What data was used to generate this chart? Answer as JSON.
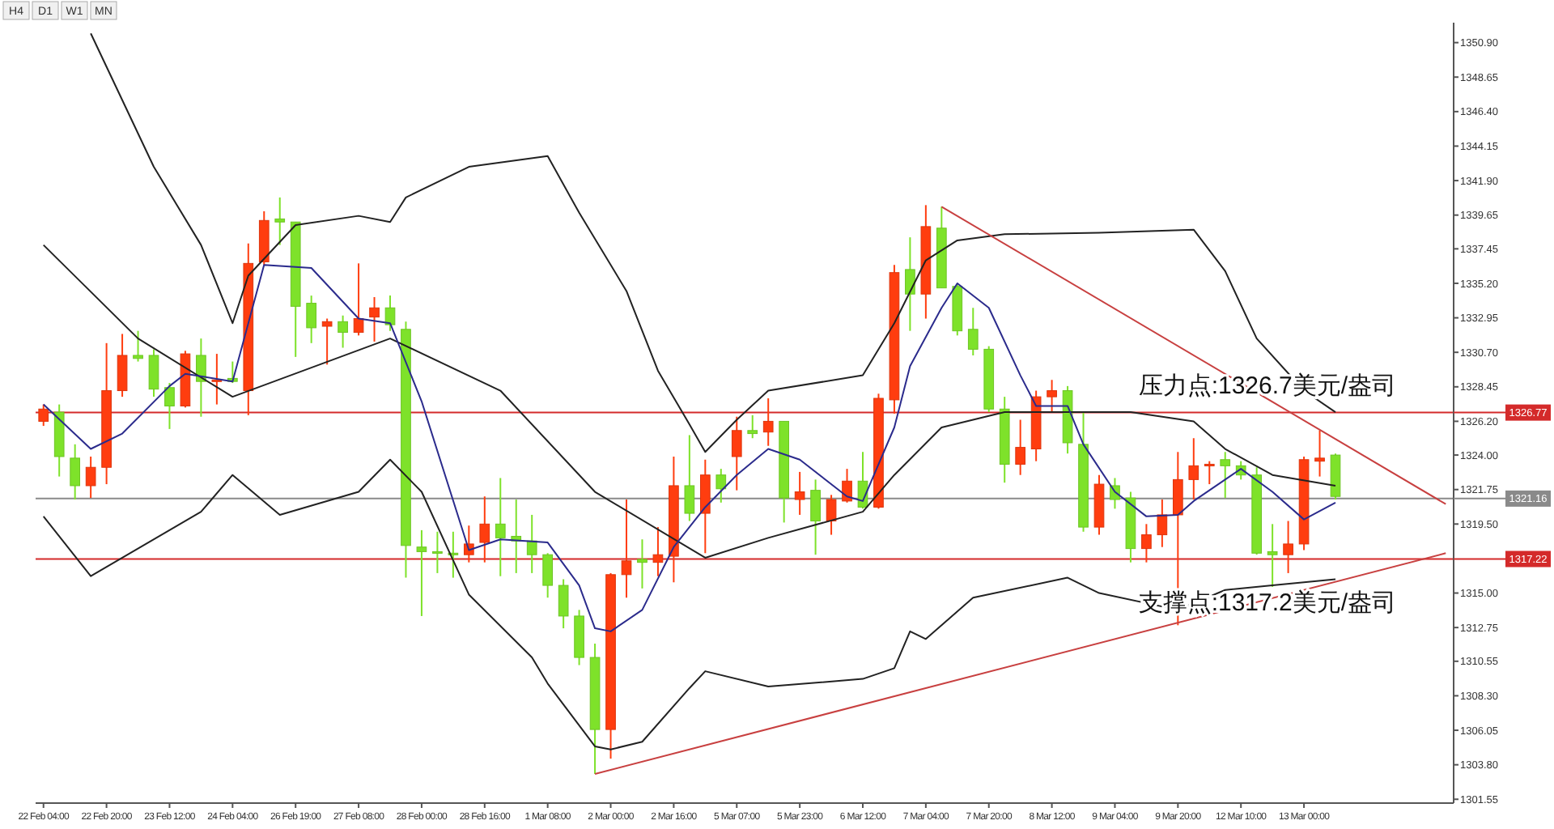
{
  "chart_data": {
    "type": "candlestick",
    "categories": [
      "22 Feb 04:00",
      null,
      null,
      null,
      "22 Feb 20:00",
      null,
      null,
      null,
      "23 Feb 12:00",
      null,
      null,
      null,
      "24 Feb 04:00",
      null,
      null,
      null,
      "26 Feb 19:00",
      null,
      null,
      null,
      "27 Feb 08:00",
      null,
      null,
      null,
      "28 Feb 00:00",
      null,
      null,
      null,
      "28 Feb 16:00",
      null,
      null,
      null,
      "1 Mar 08:00",
      null,
      null,
      null,
      "2 Mar 00:00",
      null,
      null,
      null,
      "2 Mar 16:00",
      null,
      null,
      null,
      "5 Mar 07:00",
      null,
      null,
      null,
      "5 Mar 23:00",
      null,
      null,
      null,
      "6 Mar 12:00",
      null,
      null,
      null,
      "7 Mar 04:00",
      null,
      null,
      null,
      "7 Mar 20:00",
      null,
      null,
      null,
      "8 Mar 12:00",
      null,
      null,
      null,
      "9 Mar 04:00",
      null,
      null,
      null,
      "9 Mar 20:00",
      null,
      null,
      null,
      "12 Mar 10:00",
      null,
      null,
      null,
      "13 Mar 00:00",
      null,
      null,
      null,
      null,
      null,
      null,
      null,
      null,
      null
    ],
    "ohlc": [
      [
        1326.2,
        1327.3,
        1325.9,
        1327.0
      ],
      [
        1326.8,
        1327.3,
        1322.6,
        1323.9
      ],
      [
        1323.8,
        1324.7,
        1321.1,
        1322.0
      ],
      [
        1322.0,
        1323.9,
        1321.2,
        1323.2
      ],
      [
        1323.2,
        1331.3,
        1322.1,
        1328.2
      ],
      [
        1328.2,
        1331.9,
        1327.8,
        1330.5
      ],
      [
        1330.5,
        1332.1,
        1330.1,
        1330.3
      ],
      [
        1330.5,
        1330.9,
        1327.8,
        1328.3
      ],
      [
        1328.4,
        1328.7,
        1325.7,
        1327.2
      ],
      [
        1327.2,
        1330.8,
        1327.1,
        1330.6
      ],
      [
        1330.5,
        1331.6,
        1326.5,
        1328.8
      ],
      [
        1328.8,
        1330.6,
        1327.3,
        1328.9
      ],
      [
        1329.0,
        1330.1,
        1328.7,
        1328.8
      ],
      [
        1328.2,
        1337.8,
        1326.6,
        1336.5
      ],
      [
        1336.6,
        1339.9,
        1336.4,
        1339.3
      ],
      [
        1339.4,
        1340.8,
        1337.7,
        1339.2
      ],
      [
        1339.2,
        1339.2,
        1330.4,
        1333.7
      ],
      [
        1333.9,
        1334.4,
        1331.3,
        1332.3
      ],
      [
        1332.4,
        1332.9,
        1329.9,
        1332.7
      ],
      [
        1332.7,
        1333.1,
        1331.0,
        1332.0
      ],
      [
        1332.0,
        1336.5,
        1331.8,
        1332.9
      ],
      [
        1333.0,
        1334.3,
        1331.4,
        1333.6
      ],
      [
        1333.6,
        1334.4,
        1332.1,
        1332.5
      ],
      [
        1332.2,
        1332.7,
        1316.0,
        1318.1
      ],
      [
        1318.0,
        1319.1,
        1313.5,
        1317.7
      ],
      [
        1317.7,
        1319.0,
        1316.3,
        1317.6
      ],
      [
        1317.6,
        1319.0,
        1316.0,
        1317.5
      ],
      [
        1317.5,
        1319.4,
        1317.0,
        1318.2
      ],
      [
        1318.3,
        1321.3,
        1317.0,
        1319.5
      ],
      [
        1319.5,
        1322.5,
        1316.1,
        1318.6
      ],
      [
        1318.7,
        1321.1,
        1316.3,
        1318.4
      ],
      [
        1318.4,
        1320.1,
        1316.3,
        1317.5
      ],
      [
        1317.5,
        1317.6,
        1314.7,
        1315.5
      ],
      [
        1315.5,
        1315.9,
        1312.7,
        1313.5
      ],
      [
        1313.5,
        1313.9,
        1310.3,
        1310.8
      ],
      [
        1310.8,
        1311.7,
        1303.2,
        1306.1
      ],
      [
        1306.1,
        1316.3,
        1304.2,
        1316.2
      ],
      [
        1316.2,
        1321.1,
        1314.7,
        1317.1
      ],
      [
        1317.2,
        1318.5,
        1315.3,
        1317.0
      ],
      [
        1317.0,
        1319.3,
        1316.1,
        1317.5
      ],
      [
        1317.4,
        1323.9,
        1315.7,
        1322.0
      ],
      [
        1322.0,
        1325.3,
        1319.7,
        1320.2
      ],
      [
        1320.2,
        1323.7,
        1317.6,
        1322.7
      ],
      [
        1322.7,
        1323.1,
        1320.9,
        1321.8
      ],
      [
        1323.9,
        1326.5,
        1321.7,
        1325.6
      ],
      [
        1325.6,
        1326.6,
        1325.1,
        1325.4
      ],
      [
        1325.5,
        1327.7,
        1324.6,
        1326.2
      ],
      [
        1326.2,
        1326.2,
        1319.6,
        1321.2
      ],
      [
        1321.1,
        1322.9,
        1320.1,
        1321.6
      ],
      [
        1321.7,
        1322.4,
        1317.5,
        1319.7
      ],
      [
        1319.7,
        1321.4,
        1318.8,
        1321.1
      ],
      [
        1321.0,
        1323.1,
        1320.9,
        1322.3
      ],
      [
        1322.3,
        1324.2,
        1320.5,
        1320.6
      ],
      [
        1320.6,
        1328.0,
        1320.5,
        1327.7
      ],
      [
        1327.6,
        1336.4,
        1326.7,
        1335.9
      ],
      [
        1336.1,
        1338.2,
        1332.1,
        1334.5
      ],
      [
        1334.5,
        1340.3,
        1332.9,
        1338.9
      ],
      [
        1338.8,
        1340.2,
        1334.9,
        1334.9
      ],
      [
        1335.0,
        1335.2,
        1331.8,
        1332.1
      ],
      [
        1332.2,
        1333.6,
        1330.5,
        1330.9
      ],
      [
        1330.9,
        1331.1,
        1326.8,
        1327.0
      ],
      [
        1327.0,
        1327.8,
        1322.2,
        1323.4
      ],
      [
        1323.4,
        1326.3,
        1322.7,
        1324.5
      ],
      [
        1324.4,
        1328.2,
        1323.6,
        1327.8
      ],
      [
        1327.8,
        1328.9,
        1326.8,
        1328.2
      ],
      [
        1328.2,
        1328.5,
        1324.1,
        1324.8
      ],
      [
        1324.7,
        1326.8,
        1319.0,
        1319.3
      ],
      [
        1319.3,
        1322.7,
        1318.8,
        1322.1
      ],
      [
        1322.0,
        1322.5,
        1320.5,
        1321.1
      ],
      [
        1321.2,
        1321.6,
        1317.0,
        1317.9
      ],
      [
        1317.9,
        1319.5,
        1317.0,
        1318.8
      ],
      [
        1318.8,
        1321.1,
        1318.0,
        1320.1
      ],
      [
        1320.1,
        1324.2,
        1312.9,
        1322.4
      ],
      [
        1322.4,
        1325.1,
        1321.1,
        1323.3
      ],
      [
        1323.3,
        1323.6,
        1322.1,
        1323.4
      ],
      [
        1323.7,
        1324.2,
        1321.2,
        1323.3
      ],
      [
        1323.3,
        1323.6,
        1322.4,
        1322.7
      ],
      [
        1322.7,
        1323.2,
        1317.5,
        1317.6
      ],
      [
        1317.7,
        1319.5,
        1315.4,
        1317.5
      ],
      [
        1317.5,
        1319.7,
        1316.3,
        1318.2
      ],
      [
        1318.2,
        1323.9,
        1317.8,
        1323.7
      ],
      [
        1323.6,
        1325.6,
        1322.6,
        1323.8
      ],
      [
        1324.0,
        1324.1,
        1321.1,
        1321.3
      ],
      null,
      null,
      null,
      null,
      null,
      null,
      null
    ],
    "colors": [
      "#ff3d0f",
      "#7ee22a",
      "#7ee22a",
      "#ff3d0f",
      "#ff3d0f",
      "#ff3d0f",
      "#7ee22a",
      "#7ee22a",
      "#7ee22a",
      "#ff3d0f",
      "#7ee22a",
      "#ff3d0f",
      "#7ee22a",
      "#ff3d0f",
      "#ff3d0f",
      "#7ee22a",
      "#7ee22a",
      "#7ee22a",
      "#ff3d0f",
      "#7ee22a",
      "#ff3d0f",
      "#ff3d0f",
      "#7ee22a",
      "#7ee22a",
      "#7ee22a",
      "#7ee22a",
      "#7ee22a",
      "#ff3d0f",
      "#ff3d0f",
      "#7ee22a",
      "#7ee22a",
      "#7ee22a",
      "#7ee22a",
      "#7ee22a",
      "#7ee22a",
      "#7ee22a",
      "#ff3d0f",
      "#ff3d0f",
      "#7ee22a",
      "#ff3d0f",
      "#ff3d0f",
      "#7ee22a",
      "#ff3d0f",
      "#7ee22a",
      "#ff3d0f",
      "#7ee22a",
      "#ff3d0f",
      "#7ee22a",
      "#ff3d0f",
      "#7ee22a",
      "#ff3d0f",
      "#ff3d0f",
      "#7ee22a",
      "#ff3d0f",
      "#ff3d0f",
      "#7ee22a",
      "#ff3d0f",
      "#7ee22a",
      "#7ee22a",
      "#7ee22a",
      "#7ee22a",
      "#7ee22a",
      "#ff3d0f",
      "#ff3d0f",
      "#ff3d0f",
      "#7ee22a",
      "#7ee22a",
      "#ff3d0f",
      "#7ee22a",
      "#7ee22a",
      "#ff3d0f",
      "#ff3d0f",
      "#ff3d0f",
      "#ff3d0f",
      "#ff3d0f",
      "#7ee22a",
      "#7ee22a",
      "#7ee22a",
      "#7ee22a",
      "#ff3d0f",
      "#ff3d0f",
      "#ff3d0f",
      "#7ee22a",
      null,
      null,
      null,
      null,
      null,
      null,
      null
    ],
    "series": [
      {
        "type": "line",
        "color": "#222222",
        "values": [
          null,
          null,
          null,
          1351.5,
          null,
          null,
          null,
          1342.8,
          null,
          null,
          1337.7,
          null,
          1332.6,
          1335.7,
          null,
          null,
          1339.0,
          null,
          null,
          null,
          1339.6,
          null,
          1339.2,
          1340.8,
          null,
          null,
          null,
          1342.8,
          null,
          null,
          null,
          null,
          1343.5,
          null,
          1339.8,
          null,
          null,
          1334.7,
          null,
          1329.5,
          null,
          1326.0,
          1324.2,
          null,
          1326.3,
          null,
          1328.2,
          null,
          null,
          null,
          null,
          null,
          1329.2,
          null,
          1332.6,
          null,
          1336.7,
          null,
          1338.0,
          null,
          null,
          1338.4,
          null,
          null,
          null,
          null,
          null,
          1338.5,
          null,
          null,
          null,
          null,
          null,
          1338.7,
          null,
          1336.0,
          null,
          1331.6,
          null,
          null,
          1328.2,
          null,
          1326.8,
          null,
          null,
          null,
          null,
          null,
          null,
          null
        ]
      },
      {
        "type": "line",
        "color": "#222222",
        "values": [
          1337.7,
          null,
          null,
          null,
          null,
          null,
          1331.6,
          null,
          null,
          null,
          null,
          null,
          1327.8,
          null,
          null,
          null,
          null,
          null,
          null,
          null,
          null,
          null,
          1331.6,
          null,
          null,
          null,
          null,
          null,
          null,
          1328.2,
          null,
          null,
          null,
          null,
          null,
          1321.6,
          null,
          null,
          null,
          null,
          null,
          null,
          1317.3,
          null,
          null,
          null,
          1318.6,
          null,
          null,
          null,
          null,
          null,
          1320.3,
          null,
          1322.7,
          null,
          null,
          1325.8,
          null,
          null,
          null,
          1326.8,
          null,
          null,
          null,
          null,
          null,
          null,
          null,
          1326.8,
          null,
          null,
          null,
          1326.2,
          null,
          1324.4,
          null,
          null,
          1322.7,
          null,
          null,
          null,
          1322.0,
          null,
          null,
          null,
          null,
          null,
          null,
          null
        ]
      },
      {
        "type": "line",
        "color": "#222222",
        "values": [
          1320.0,
          null,
          null,
          1316.1,
          null,
          null,
          null,
          null,
          null,
          null,
          1320.3,
          null,
          1322.7,
          null,
          null,
          1320.1,
          null,
          null,
          null,
          null,
          1321.6,
          null,
          1323.7,
          null,
          1321.6,
          null,
          null,
          1314.9,
          null,
          null,
          null,
          1310.8,
          1309.1,
          null,
          null,
          1305.0,
          1304.8,
          null,
          1305.3,
          null,
          null,
          1308.8,
          1309.9,
          null,
          null,
          null,
          1308.9,
          null,
          null,
          null,
          null,
          null,
          1309.4,
          null,
          1310.1,
          1312.5,
          1312.0,
          null,
          null,
          1314.7,
          null,
          null,
          null,
          null,
          null,
          1316.0,
          null,
          1315.0,
          null,
          null,
          null,
          null,
          1313.9,
          null,
          null,
          1315.2,
          null,
          null,
          1315.5,
          null,
          null,
          null,
          1315.9,
          null,
          null,
          null,
          null,
          null,
          null,
          null
        ]
      },
      {
        "type": "line",
        "color": "#2b2b8c",
        "values": [
          1327.3,
          null,
          null,
          1324.4,
          null,
          1325.4,
          null,
          null,
          1328.5,
          1329.3,
          null,
          null,
          1328.8,
          null,
          1336.4,
          null,
          null,
          1336.2,
          null,
          null,
          1332.9,
          null,
          1332.6,
          null,
          1327.5,
          null,
          null,
          1317.8,
          null,
          1318.5,
          null,
          null,
          1318.3,
          null,
          1315.5,
          1312.7,
          1312.5,
          null,
          1313.9,
          null,
          1318.0,
          null,
          1320.6,
          null,
          1322.7,
          null,
          1324.4,
          null,
          1323.7,
          null,
          null,
          1321.3,
          1321.0,
          null,
          1325.8,
          1329.8,
          null,
          1333.6,
          1335.2,
          null,
          1333.6,
          null,
          1329.2,
          1327.2,
          null,
          1327.2,
          1324.7,
          null,
          1321.6,
          null,
          1320.0,
          null,
          1320.1,
          1321.0,
          null,
          null,
          1323.1,
          null,
          1321.6,
          null,
          1319.8,
          null,
          1320.9,
          null,
          null,
          null,
          null,
          null,
          null,
          null
        ]
      },
      {
        "type": "line",
        "color": "#c84040",
        "values": [
          null,
          null,
          null,
          null,
          null,
          null,
          null,
          null,
          null,
          null,
          null,
          null,
          null,
          null,
          null,
          null,
          null,
          null,
          null,
          null,
          null,
          null,
          null,
          null,
          null,
          null,
          null,
          null,
          null,
          null,
          null,
          null,
          null,
          null,
          null,
          null,
          null,
          null,
          null,
          null,
          null,
          null,
          null,
          null,
          null,
          null,
          null,
          null,
          null,
          null,
          null,
          null,
          null,
          null,
          null,
          null,
          null,
          1340.2,
          null,
          null,
          null,
          null,
          null,
          null,
          null,
          null,
          null,
          null,
          null,
          null,
          null,
          null,
          null,
          null,
          null,
          null,
          null,
          null,
          null,
          null,
          null,
          null,
          null,
          null,
          null,
          null,
          null,
          null,
          null,
          1320.8
        ]
      },
      {
        "type": "line",
        "color": "#c84040",
        "values": [
          null,
          null,
          null,
          null,
          null,
          null,
          null,
          null,
          null,
          null,
          null,
          null,
          null,
          null,
          null,
          null,
          null,
          null,
          null,
          null,
          null,
          null,
          null,
          null,
          null,
          null,
          null,
          null,
          null,
          null,
          null,
          null,
          null,
          null,
          null,
          1303.2,
          null,
          null,
          null,
          null,
          null,
          null,
          null,
          null,
          null,
          null,
          null,
          null,
          null,
          null,
          null,
          null,
          null,
          null,
          null,
          null,
          null,
          null,
          null,
          null,
          null,
          null,
          null,
          null,
          null,
          null,
          null,
          null,
          null,
          null,
          null,
          null,
          null,
          null,
          null,
          null,
          null,
          null,
          null,
          null,
          null,
          null,
          null,
          null,
          null,
          null,
          null,
          null,
          null,
          1317.6
        ]
      }
    ],
    "ylim": [
      1301.3,
      1352.2
    ],
    "yticks": [
      {
        "value": 1350.9,
        "label": "1350.90"
      },
      {
        "value": 1348.65,
        "label": "1348.65"
      },
      {
        "value": 1346.4,
        "label": "1346.40"
      },
      {
        "value": 1344.15,
        "label": "1344.15"
      },
      {
        "value": 1341.9,
        "label": "1341.90"
      },
      {
        "value": 1339.65,
        "label": "1339.65"
      },
      {
        "value": 1337.45,
        "label": "1337.45"
      },
      {
        "value": 1335.2,
        "label": "1335.20"
      },
      {
        "value": 1332.95,
        "label": "1332.95"
      },
      {
        "value": 1330.7,
        "label": "1330.70"
      },
      {
        "value": 1328.45,
        "label": "1328.45"
      },
      {
        "value": 1326.2,
        "label": "1326.20"
      },
      {
        "value": 1324.0,
        "label": "1324.00"
      },
      {
        "value": 1321.75,
        "label": "1321.75"
      },
      {
        "value": 1319.5,
        "label": "1319.50"
      },
      {
        "value": 1315.0,
        "label": "1315.00"
      },
      {
        "value": 1312.75,
        "label": "1312.75"
      },
      {
        "value": 1310.55,
        "label": "1310.55"
      },
      {
        "value": 1308.3,
        "label": "1308.30"
      },
      {
        "value": 1306.05,
        "label": "1306.05"
      },
      {
        "value": 1303.8,
        "label": "1303.80"
      },
      {
        "value": 1301.55,
        "label": "1301.55"
      }
    ],
    "ref_lines": [
      {
        "axis": "y",
        "value": 1326.77,
        "label": "1326.77",
        "color": "#d42a2a"
      },
      {
        "axis": "y",
        "value": 1317.22,
        "label": "1317.22",
        "color": "#d42a2a"
      },
      {
        "axis": "y",
        "value": 1321.16,
        "label": "1321.16",
        "color": "#8a8a8a"
      }
    ],
    "annotations": [
      "压力点:1326.7美元/盎司",
      "支撑点:1317.2美元/盎司",
      "H4",
      "D1",
      "W1",
      "MN"
    ]
  }
}
